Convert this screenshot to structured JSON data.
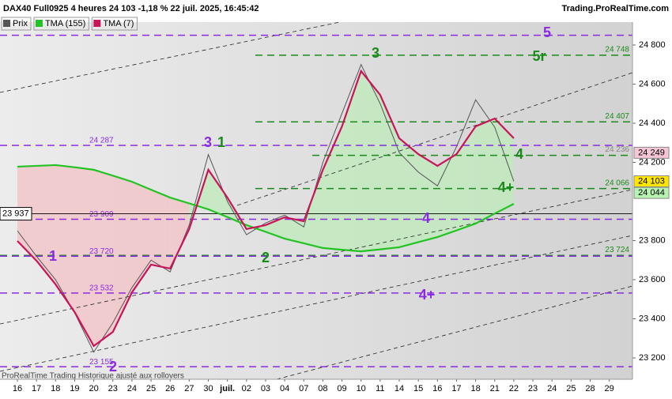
{
  "header": {
    "title": "DAX40 Full0925 4 heures 24 103 -1,18 % 22 juil. 2025, 16:45:42",
    "site": "Trading.ProRealTime.com",
    "footer": "ProRealTime Trading  Historique ajusté aux rollovers"
  },
  "chart_data": {
    "type": "line",
    "categories": [
      "16",
      "17",
      "18",
      "19",
      "20",
      "23",
      "24",
      "25",
      "26",
      "27",
      "30",
      "juil.",
      "02",
      "03",
      "04",
      "07",
      "08",
      "09",
      "10",
      "11",
      "14",
      "15",
      "16",
      "17",
      "18",
      "21",
      "22",
      "23",
      "24",
      "25",
      "28",
      "29"
    ],
    "series": [
      {
        "name": "Prix",
        "color": "#555555",
        "values": [
          23850,
          23720,
          23600,
          23430,
          23230,
          23380,
          23560,
          23700,
          23640,
          23880,
          24240,
          24000,
          23830,
          23890,
          23930,
          23870,
          24200,
          24450,
          24700,
          24500,
          24250,
          24150,
          24080,
          24280,
          24520,
          24380,
          24103,
          null,
          null,
          null,
          null,
          null
        ]
      },
      {
        "name": "TMA (155)",
        "color": "#22c322",
        "values": [
          24178,
          24182,
          24186,
          24175,
          24162,
          24132,
          24101,
          24060,
          24020,
          23990,
          23960,
          23920,
          23879,
          23845,
          23810,
          23786,
          23762,
          23753,
          23745,
          23755,
          23766,
          23792,
          23818,
          23852,
          23887,
          23938,
          23988,
          null,
          null,
          null,
          null,
          null
        ]
      },
      {
        "name": "TMA (7)",
        "color": "#c8155a",
        "values": [
          23798,
          23697,
          23576,
          23434,
          23261,
          23333,
          23535,
          23677,
          23657,
          23859,
          24162,
          24020,
          23859,
          23879,
          23919,
          23899,
          24162,
          24384,
          24667,
          24545,
          24323,
          24242,
          24182,
          24242,
          24384,
          24424,
          24323,
          null,
          null,
          null,
          null,
          null
        ]
      }
    ],
    "ylim": [
      23091,
      24917
    ],
    "yticks": [
      {
        "value": 24800,
        "label": "24 800"
      },
      {
        "value": 24600,
        "label": "24 600"
      },
      {
        "value": 24400,
        "label": "24 400"
      },
      {
        "value": 24200,
        "label": "24 200"
      },
      {
        "value": 23800,
        "label": "23 800"
      },
      {
        "value": 23600,
        "label": "23 600"
      },
      {
        "value": 23400,
        "label": "23 400"
      },
      {
        "value": 23200,
        "label": "23 200"
      }
    ],
    "levels": [
      {
        "value": 24850,
        "color": "#8a2be2"
      },
      {
        "value": 24748,
        "label": "24 748",
        "color": "#1a8a1a"
      },
      {
        "value": 24407,
        "label": "24 407",
        "color": "#1a8a1a"
      },
      {
        "value": 24287,
        "label": "24 287",
        "color": "#8a2be2"
      },
      {
        "value": 24236,
        "label": "24 236",
        "color": "#1a8a1a"
      },
      {
        "value": 24066,
        "label": "24 066",
        "color": "#1a8a1a"
      },
      {
        "value": 23909,
        "label": "23 909",
        "color": "#8a2be2"
      },
      {
        "value": 23724,
        "label": "23 724",
        "color": "#1a8a1a"
      },
      {
        "value": 23720,
        "label": "23 720",
        "color": "#8a2be2"
      },
      {
        "value": 23532,
        "label": "23 532",
        "color": "#8a2be2"
      },
      {
        "value": 23155,
        "label": "23 155",
        "color": "#8a2be2"
      }
    ],
    "price_tags": [
      {
        "value": 24249,
        "label": "24 249",
        "color": "#f7c6d6"
      },
      {
        "value": 24103,
        "label": "24 103",
        "color": "#ffe600"
      },
      {
        "value": 24044,
        "label": "24 044",
        "color": "#b6f2b0"
      }
    ],
    "last_line": {
      "value": 23937,
      "label": "23 937"
    },
    "wave_labels": [
      {
        "text": "5",
        "color": "#8a2be2"
      },
      {
        "text": "5r",
        "color": "#1a8a1a"
      },
      {
        "text": "3",
        "color": "#1a8a1a"
      },
      {
        "text": "3",
        "color": "#8a2be2"
      },
      {
        "text": "1",
        "color": "#1a8a1a"
      },
      {
        "text": "1",
        "color": "#8a2be2"
      },
      {
        "text": "2",
        "color": "#8a2be2"
      },
      {
        "text": "2",
        "color": "#1a8a1a"
      },
      {
        "text": "4",
        "color": "#8a2be2"
      },
      {
        "text": "4+",
        "color": "#8a2be2"
      },
      {
        "text": "4+",
        "color": "#1a8a1a"
      },
      {
        "text": "4",
        "color": "#1a8a1a"
      }
    ]
  }
}
